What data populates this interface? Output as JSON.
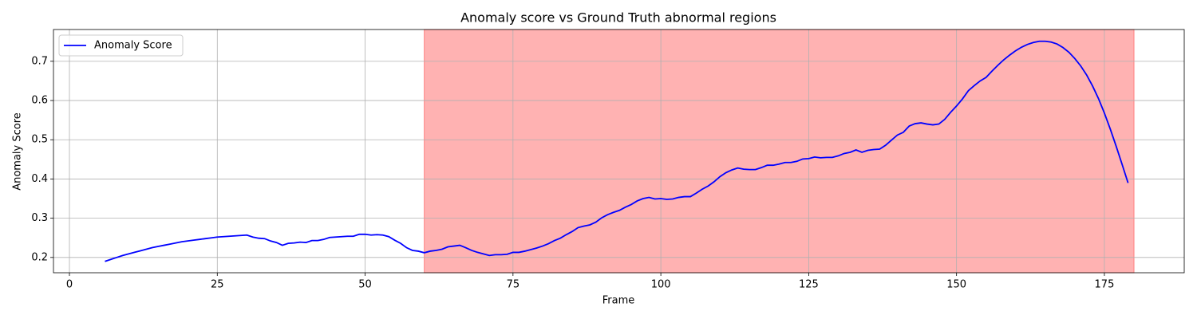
{
  "chart_data": {
    "type": "line",
    "title": "Anomaly score vs Ground Truth abnormal regions",
    "x_label": "Frame",
    "y_label": "Anomaly Score",
    "x": [
      6,
      7,
      8,
      9,
      10,
      11,
      12,
      13,
      14,
      15,
      16,
      17,
      18,
      19,
      20,
      21,
      22,
      23,
      24,
      25,
      26,
      27,
      28,
      29,
      30,
      31,
      32,
      33,
      34,
      35,
      36,
      37,
      38,
      39,
      40,
      41,
      42,
      43,
      44,
      45,
      46,
      47,
      48,
      49,
      50,
      51,
      52,
      53,
      54,
      55,
      56,
      57,
      58,
      59,
      60,
      61,
      62,
      63,
      64,
      65,
      66,
      67,
      68,
      69,
      70,
      71,
      72,
      73,
      74,
      75,
      76,
      77,
      78,
      79,
      80,
      81,
      82,
      83,
      84,
      85,
      86,
      87,
      88,
      89,
      90,
      91,
      92,
      93,
      94,
      95,
      96,
      97,
      98,
      99,
      100,
      101,
      102,
      103,
      104,
      105,
      106,
      107,
      108,
      109,
      110,
      111,
      112,
      113,
      114,
      115,
      116,
      117,
      118,
      119,
      120,
      121,
      122,
      123,
      124,
      125,
      126,
      127,
      128,
      129,
      130,
      131,
      132,
      133,
      134,
      135,
      136,
      137,
      138,
      139,
      140,
      141,
      142,
      143,
      144,
      145,
      146,
      147,
      148,
      149,
      150,
      151,
      152,
      153,
      154,
      155,
      156,
      157,
      158,
      159,
      160,
      161,
      162,
      163,
      164,
      165,
      166,
      167,
      168,
      169,
      170,
      171,
      172,
      173,
      174,
      175,
      176,
      177,
      178,
      179
    ],
    "series": [
      {
        "name": "Anomaly Score",
        "color": "#0000ff",
        "values": [
          0.19,
          0.195,
          0.2,
          0.205,
          0.209,
          0.213,
          0.217,
          0.221,
          0.225,
          0.228,
          0.231,
          0.234,
          0.237,
          0.24,
          0.242,
          0.244,
          0.246,
          0.248,
          0.25,
          0.252,
          0.253,
          0.254,
          0.255,
          0.256,
          0.257,
          0.252,
          0.249,
          0.248,
          0.242,
          0.238,
          0.231,
          0.236,
          0.237,
          0.239,
          0.238,
          0.243,
          0.243,
          0.246,
          0.251,
          0.252,
          0.253,
          0.254,
          0.254,
          0.259,
          0.259,
          0.257,
          0.258,
          0.257,
          0.253,
          0.244,
          0.236,
          0.225,
          0.218,
          0.216,
          0.212,
          0.216,
          0.218,
          0.221,
          0.227,
          0.229,
          0.231,
          0.225,
          0.218,
          0.213,
          0.209,
          0.205,
          0.207,
          0.207,
          0.208,
          0.213,
          0.213,
          0.216,
          0.22,
          0.224,
          0.229,
          0.235,
          0.243,
          0.249,
          0.258,
          0.266,
          0.276,
          0.28,
          0.283,
          0.29,
          0.301,
          0.309,
          0.315,
          0.32,
          0.328,
          0.335,
          0.344,
          0.35,
          0.353,
          0.349,
          0.35,
          0.348,
          0.349,
          0.353,
          0.355,
          0.355,
          0.364,
          0.374,
          0.382,
          0.393,
          0.406,
          0.416,
          0.423,
          0.428,
          0.425,
          0.424,
          0.424,
          0.429,
          0.435,
          0.435,
          0.438,
          0.442,
          0.442,
          0.445,
          0.451,
          0.452,
          0.456,
          0.454,
          0.455,
          0.455,
          0.459,
          0.465,
          0.468,
          0.474,
          0.468,
          0.473,
          0.475,
          0.476,
          0.486,
          0.499,
          0.512,
          0.519,
          0.535,
          0.541,
          0.543,
          0.54,
          0.538,
          0.54,
          0.552,
          0.57,
          0.586,
          0.604,
          0.625,
          0.638,
          0.65,
          0.659,
          0.675,
          0.69,
          0.704,
          0.716,
          0.727,
          0.736,
          0.743,
          0.748,
          0.751,
          0.751,
          0.749,
          0.744,
          0.735,
          0.723,
          0.707,
          0.688,
          0.665,
          0.637,
          0.605,
          0.568,
          0.527,
          0.483,
          0.437,
          0.39
        ]
      }
    ],
    "span": {
      "start": 60,
      "end": 180,
      "color": "#ffb2b2"
    },
    "xlim": [
      -2.7,
      188.5
    ],
    "ylim": [
      0.161,
      0.781
    ],
    "xticks": [
      0,
      25,
      50,
      75,
      100,
      125,
      150,
      175
    ],
    "yticks": [
      0.2,
      0.3,
      0.4,
      0.5,
      0.6,
      0.7
    ],
    "grid": true,
    "legend": "upper-left"
  }
}
